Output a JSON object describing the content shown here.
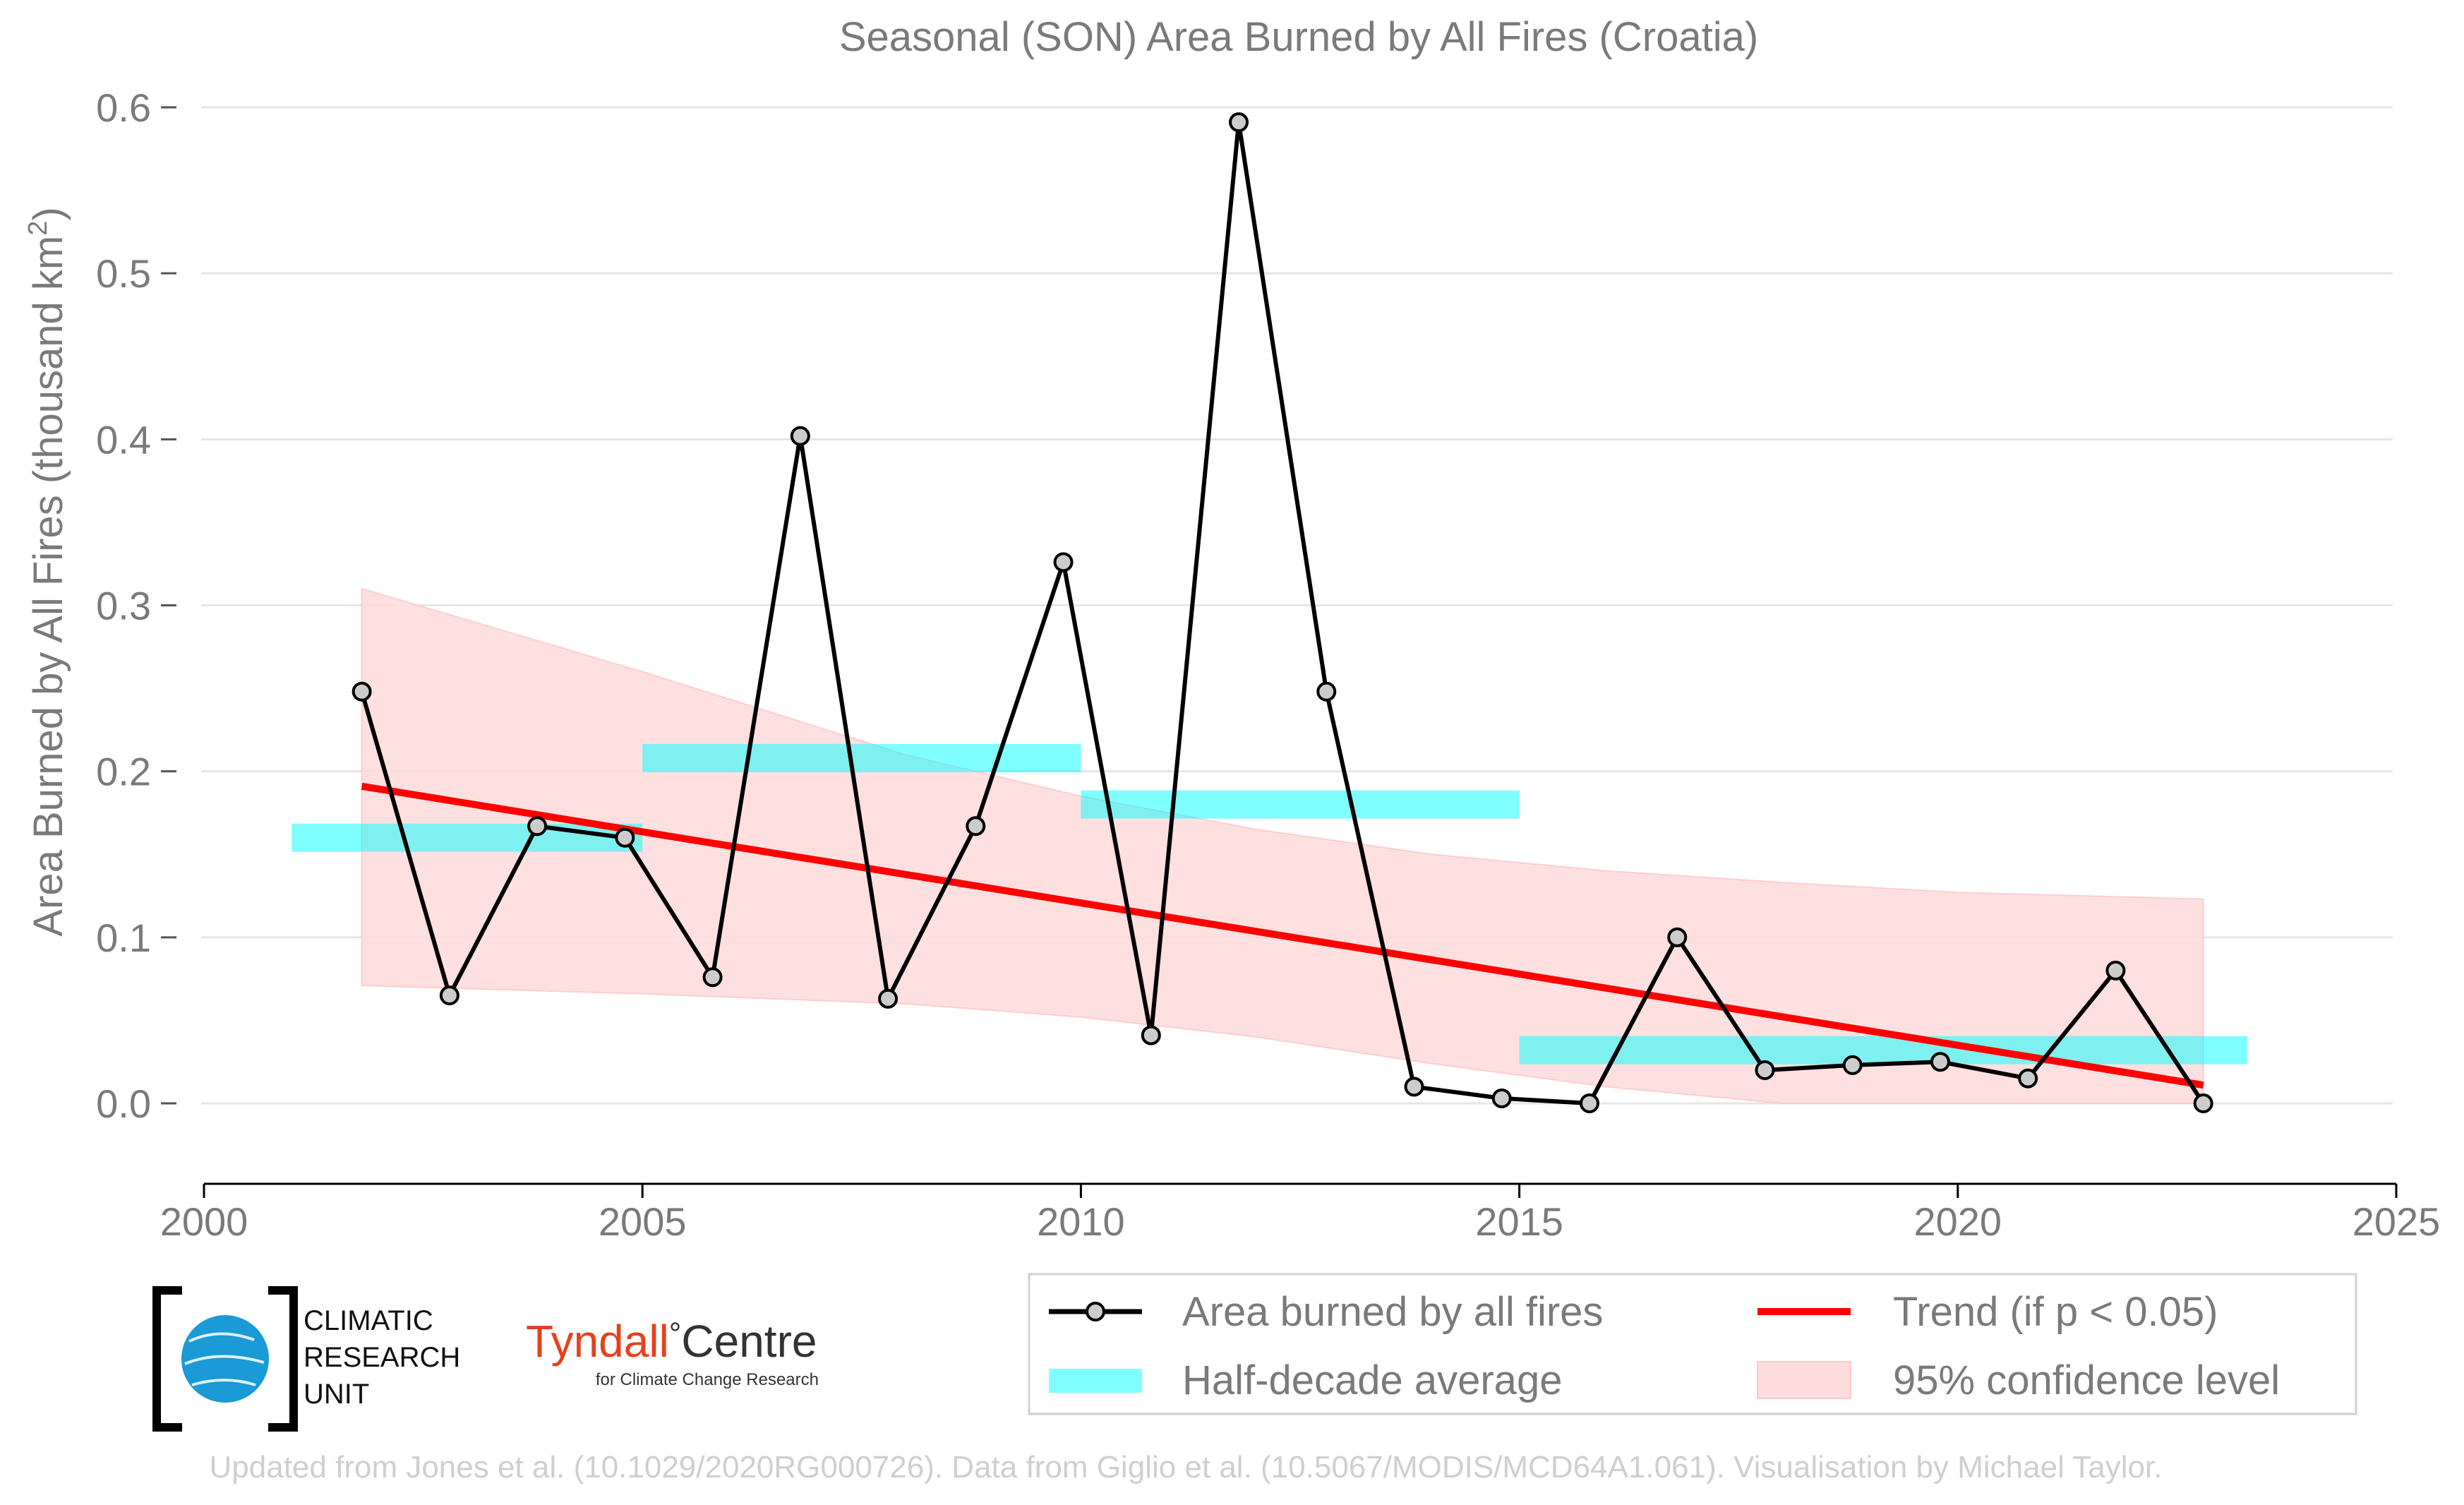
{
  "chart_data": {
    "type": "line",
    "title": "Seasonal (SON) Area Burned by All Fires (Croatia)",
    "ylabel": "Area Burned by All Fires (thousand km",
    "ylabel_sup": "2",
    "ylabel_tail": ")",
    "xlim": [
      2000,
      2025
    ],
    "ylim": [
      -0.04,
      0.6
    ],
    "x_ticks": [
      2000,
      2005,
      2010,
      2015,
      2020,
      2025
    ],
    "x_tick_labels": [
      "2000",
      "2005",
      "2010",
      "2015",
      "2020",
      "2025"
    ],
    "y_ticks": [
      0.0,
      0.1,
      0.2,
      0.3,
      0.4,
      0.5,
      0.6
    ],
    "y_tick_labels": [
      "0.0",
      "0.1",
      "0.2",
      "0.3",
      "0.4",
      "0.5",
      "0.6"
    ],
    "grid": "horizontal",
    "legend_position": "bottom-right",
    "series": [
      {
        "name": "Area burned by all fires",
        "color": "#000000",
        "marker_fill": "#cccccc",
        "x": [
          2001.8,
          2002.8,
          2003.8,
          2004.8,
          2005.8,
          2006.8,
          2007.8,
          2008.8,
          2009.8,
          2010.8,
          2011.8,
          2012.8,
          2013.8,
          2014.8,
          2015.8,
          2016.8,
          2017.8,
          2018.8,
          2019.8,
          2020.8,
          2021.8,
          2022.8
        ],
        "y": [
          0.248,
          0.065,
          0.167,
          0.16,
          0.076,
          0.402,
          0.063,
          0.167,
          0.326,
          0.041,
          0.591,
          0.248,
          0.01,
          0.003,
          0.0,
          0.1,
          0.02,
          0.023,
          0.025,
          0.015,
          0.08,
          0.0
        ]
      }
    ],
    "half_decade_average": {
      "name": "Half-decade average",
      "color": "#00ffff",
      "segments": [
        {
          "x_start": 2001,
          "x_end": 2005,
          "y": 0.16
        },
        {
          "x_start": 2005,
          "x_end": 2010,
          "y": 0.208
        },
        {
          "x_start": 2010,
          "x_end": 2015,
          "y": 0.18
        },
        {
          "x_start": 2015,
          "x_end": 2023.3,
          "y": 0.032
        }
      ]
    },
    "trend": {
      "name": "Trend (if p < 0.05)",
      "color": "#ff0000",
      "x_start": 2001.8,
      "y_start": 0.191,
      "x_end": 2022.8,
      "y_end": 0.011
    },
    "confidence": {
      "name": "95% confidence level",
      "color": "#ffdddd",
      "x": [
        2001.8,
        2005,
        2008,
        2010,
        2012,
        2014,
        2016,
        2018,
        2020,
        2022.8
      ],
      "upper": [
        0.31,
        0.26,
        0.21,
        0.185,
        0.165,
        0.15,
        0.14,
        0.133,
        0.127,
        0.123
      ],
      "lower": [
        0.071,
        0.066,
        0.06,
        0.052,
        0.04,
        0.024,
        0.01,
        0.0,
        0.0,
        0.0
      ]
    }
  },
  "legend": {
    "area_label": "Area burned by all fires",
    "half_decade_label": "Half-decade average",
    "trend_label": "Trend (if p < 0.05)",
    "confidence_label": "95% confidence level"
  },
  "logos": {
    "cru_line1": "CLIMATIC",
    "cru_line2": "RESEARCH",
    "cru_line3": "UNIT",
    "tyndall_name": "Tyndall",
    "tyndall_degree": "°",
    "tyndall_centre": "Centre",
    "tyndall_sub": "for Climate Change Research"
  },
  "footer": {
    "credit": "Updated from Jones et al. (10.1029/2020RG000726). Data from Giglio et al. (10.5067/MODIS/MCD64A1.061). Visualisation by Michael Taylor."
  }
}
